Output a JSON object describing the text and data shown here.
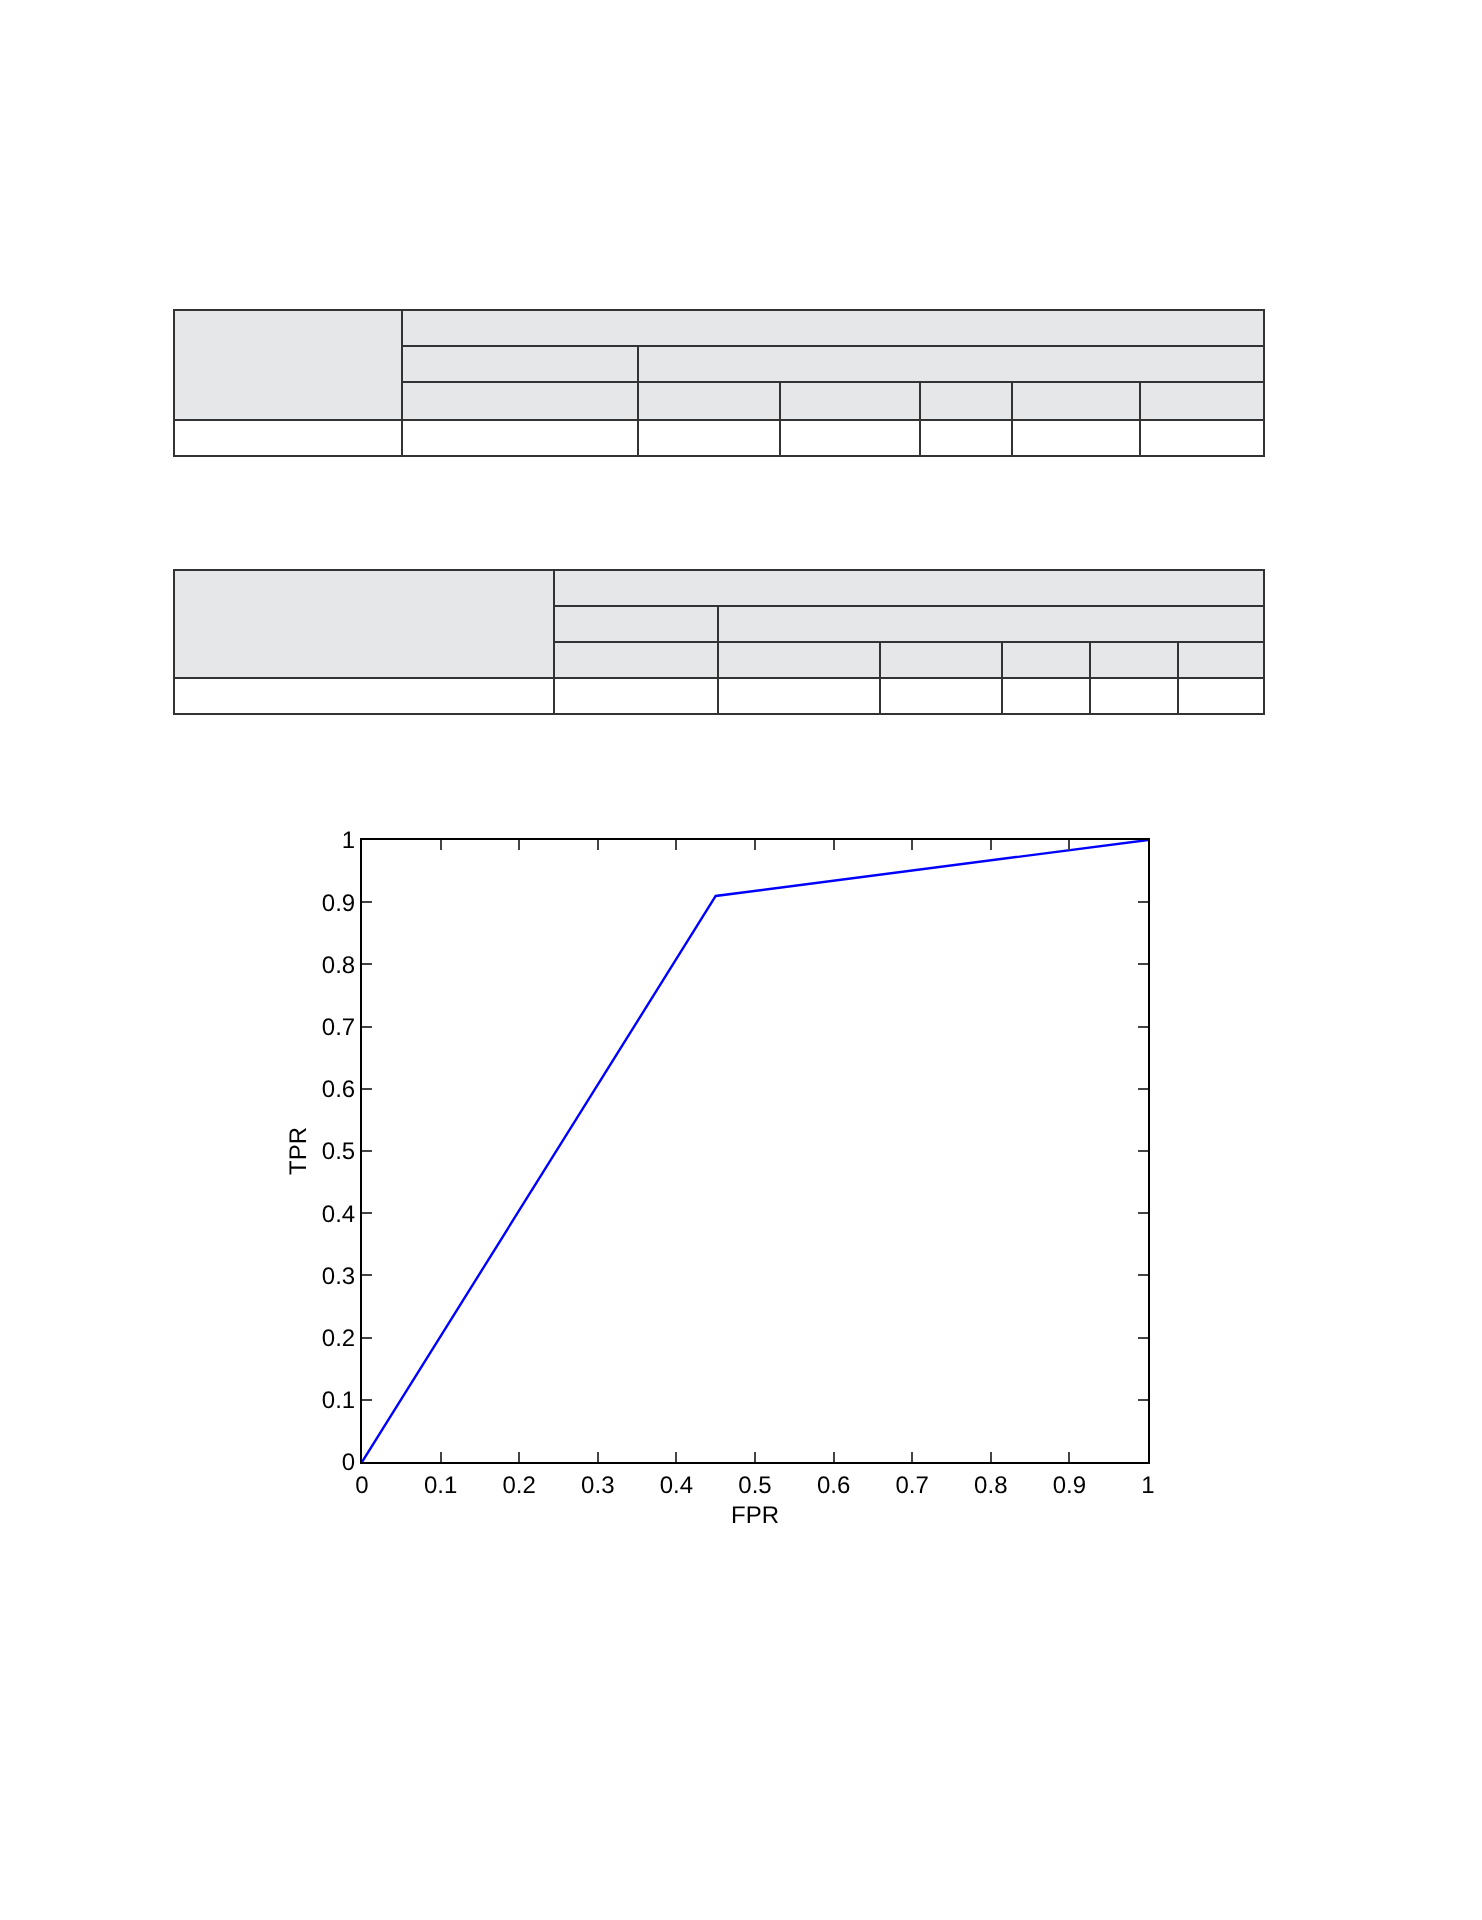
{
  "chart_data": {
    "type": "line",
    "xlabel": "FPR",
    "ylabel": "TPR",
    "x": [
      0,
      0.45,
      1
    ],
    "series": [
      {
        "color": "#0000ff",
        "values": [
          0,
          0.91,
          1
        ]
      }
    ],
    "xlim": [
      0,
      1
    ],
    "ylim": [
      0,
      1
    ],
    "xticks": [
      0,
      0.1,
      0.2,
      0.3,
      0.4,
      0.5,
      0.6,
      0.7,
      0.8,
      0.9,
      1
    ],
    "yticks": [
      0,
      0.1,
      0.2,
      0.3,
      0.4,
      0.5,
      0.6,
      0.7,
      0.8,
      0.9,
      1
    ],
    "marker": "none",
    "line_style": "solid"
  }
}
